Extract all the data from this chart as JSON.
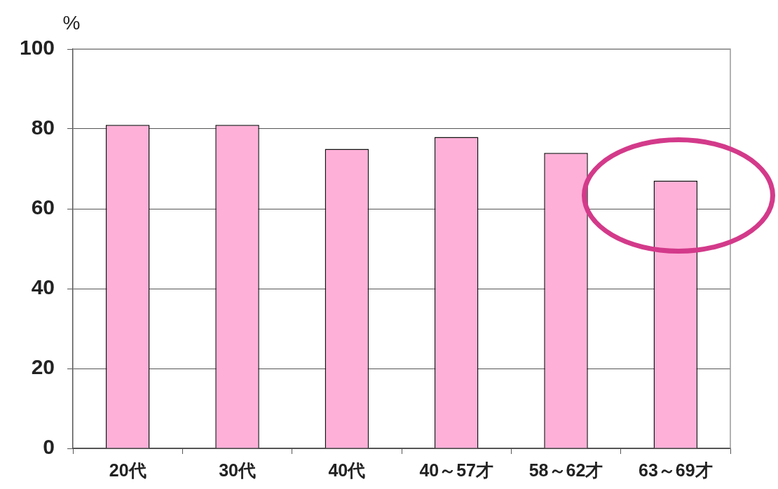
{
  "chart_data": {
    "type": "bar",
    "ylabel": "%",
    "categories": [
      "20代",
      "30代",
      "40代",
      "40～57才",
      "58～62才",
      "63～69才"
    ],
    "values": [
      81,
      81,
      75,
      78,
      74,
      67
    ],
    "color": "#ffb0d8",
    "ylim": [
      0,
      100
    ],
    "yticks": [
      0,
      20,
      40,
      60,
      80,
      100
    ],
    "grid": "y",
    "legend": false
  }
}
